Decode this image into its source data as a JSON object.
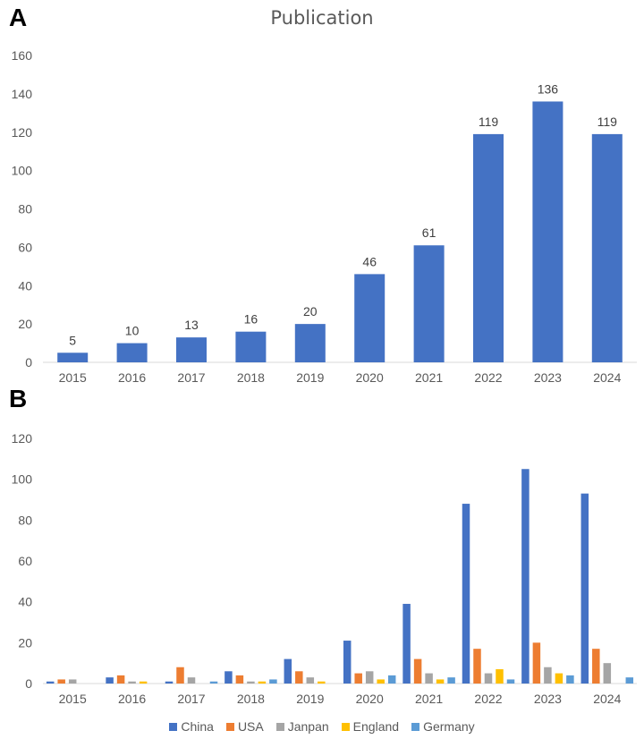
{
  "panel_labels": {
    "a": "A",
    "b": "B"
  },
  "chart_data": [
    {
      "type": "bar",
      "title": "Publication",
      "xlabel": "",
      "ylabel": "",
      "categories": [
        "2015",
        "2016",
        "2017",
        "2018",
        "2019",
        "2020",
        "2021",
        "2022",
        "2023",
        "2024"
      ],
      "values": [
        5,
        10,
        13,
        16,
        20,
        46,
        61,
        119,
        136,
        119
      ],
      "ylim": [
        0,
        160
      ],
      "yticks": [
        0,
        20,
        40,
        60,
        80,
        100,
        120,
        140,
        160
      ],
      "color": "#4472C4",
      "data_labels": true,
      "grid": false
    },
    {
      "type": "bar",
      "title": "",
      "xlabel": "",
      "ylabel": "",
      "categories": [
        "2015",
        "2016",
        "2017",
        "2018",
        "2019",
        "2020",
        "2021",
        "2022",
        "2023",
        "2024"
      ],
      "series": [
        {
          "name": "China",
          "color": "#4472C4",
          "values": [
            1,
            3,
            1,
            6,
            12,
            21,
            39,
            88,
            105,
            93
          ]
        },
        {
          "name": "USA",
          "color": "#ED7D31",
          "values": [
            2,
            4,
            8,
            4,
            6,
            5,
            12,
            17,
            20,
            17
          ]
        },
        {
          "name": "Janpan",
          "color": "#A5A5A5",
          "values": [
            2,
            1,
            3,
            1,
            3,
            6,
            5,
            5,
            8,
            10
          ]
        },
        {
          "name": "England",
          "color": "#FFC000",
          "values": [
            0,
            1,
            0,
            1,
            1,
            2,
            2,
            7,
            5,
            0
          ]
        },
        {
          "name": "Germany",
          "color": "#5B9BD5",
          "values": [
            0,
            0,
            1,
            2,
            0,
            4,
            3,
            2,
            4,
            3
          ]
        }
      ],
      "ylim": [
        0,
        120
      ],
      "yticks": [
        0,
        20,
        40,
        60,
        80,
        100,
        120
      ],
      "legend": "bottom",
      "grid": false
    }
  ]
}
